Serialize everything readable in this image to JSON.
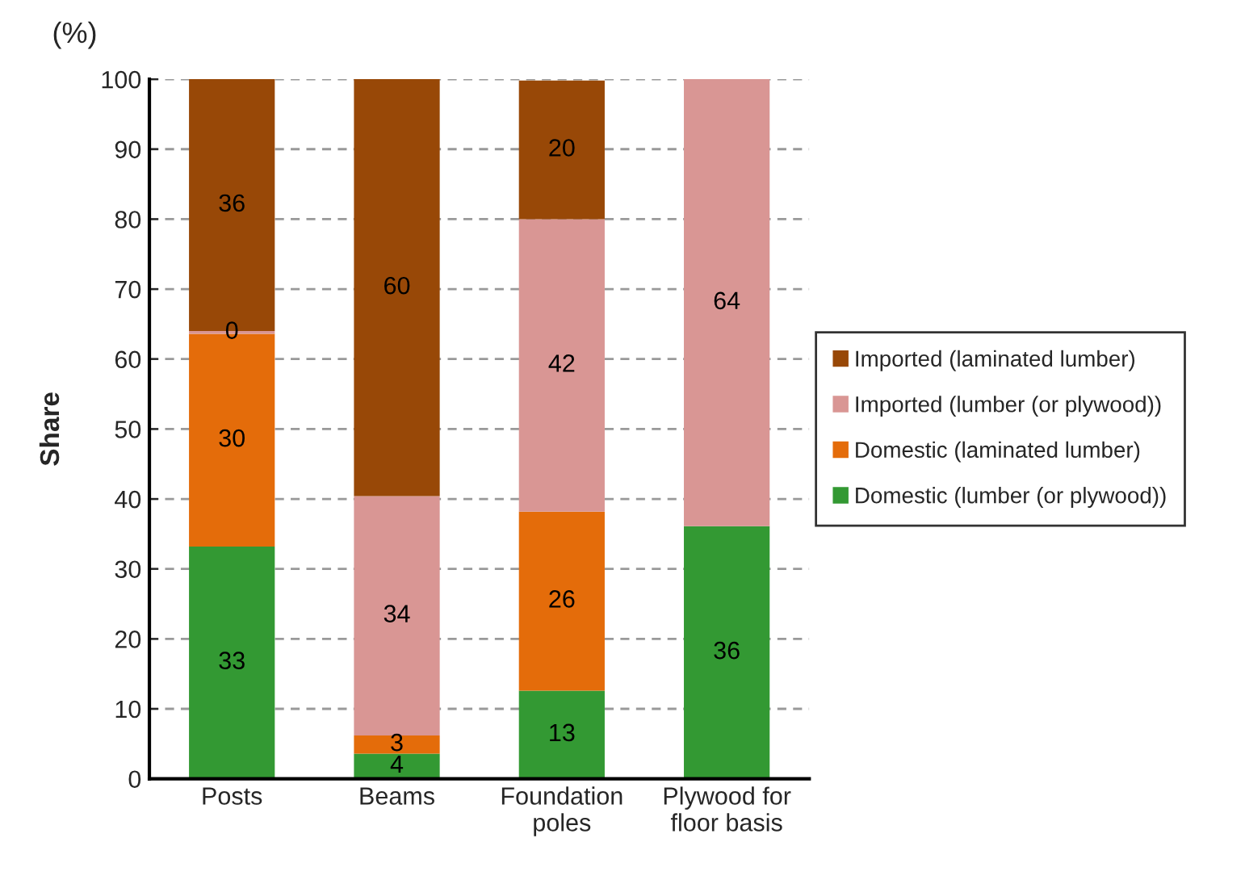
{
  "chart_data": {
    "type": "bar",
    "stacked": true,
    "ylabel": "Share",
    "annotations": [
      "(%)"
    ],
    "categories": [
      "Posts",
      "Beams",
      "Foundation\npoles",
      "Plywood for\nfloor basis"
    ],
    "series": [
      {
        "name": "Domestic (lumber (or plywood))",
        "color": "#339933",
        "values": [
          33.2,
          3.6,
          12.6,
          36.1
        ],
        "value_labels": [
          "33",
          "4",
          "13",
          "36"
        ]
      },
      {
        "name": "Domestic (laminated lumber)",
        "color": "#e46c0a",
        "values": [
          30.4,
          2.6,
          25.6,
          0
        ],
        "value_labels": [
          "30",
          "3",
          "26",
          null
        ]
      },
      {
        "name": "Imported (lumber (or plywood))",
        "color": "#d99694",
        "values": [
          0.4,
          34.2,
          41.8,
          63.9
        ],
        "value_labels": [
          "0",
          "34",
          "42",
          "64"
        ]
      },
      {
        "name": "Imported (laminated lumber)",
        "color": "#984807",
        "values": [
          36.0,
          59.6,
          19.8,
          0
        ],
        "value_labels": [
          "36",
          "60",
          "20",
          null
        ]
      }
    ],
    "ylim": [
      0,
      100
    ],
    "yticks": [
      0,
      10,
      20,
      30,
      40,
      50,
      60,
      70,
      80,
      90,
      100
    ],
    "grid": "y",
    "legend": "right"
  }
}
